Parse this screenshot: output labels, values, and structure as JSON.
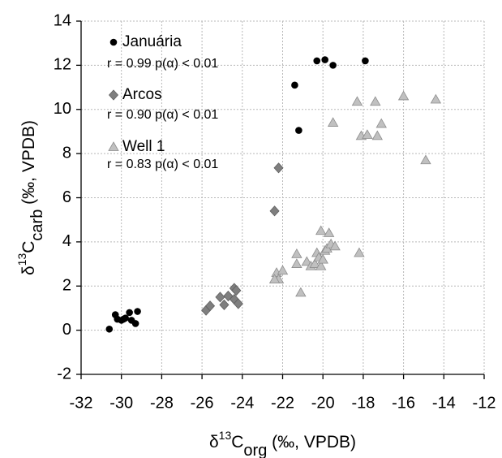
{
  "chart_data": {
    "type": "scatter",
    "xlabel": [
      "δ",
      "13",
      "C",
      "org",
      " (‰, VPDB)"
    ],
    "ylabel": [
      "δ",
      "13",
      "C",
      "carb",
      " (‰, VPDB)"
    ],
    "xlim": [
      -32,
      -12
    ],
    "xticks": [
      -32,
      -30,
      -28,
      -26,
      -24,
      -22,
      -20,
      -18,
      -16,
      -14,
      -12
    ],
    "ylim": [
      -2,
      14
    ],
    "yticks": [
      -2,
      0,
      2,
      4,
      6,
      8,
      10,
      12,
      14
    ],
    "grid": true,
    "series": [
      {
        "name": "Januária",
        "marker": "circle",
        "color": "#000000",
        "annotation": "r = 0.99 p(α) < 0.01",
        "x": [
          -30.6,
          -30.3,
          -30.2,
          -30.0,
          -29.8,
          -29.6,
          -29.5,
          -29.3,
          -29.2,
          -29.9,
          -21.4,
          -20.3,
          -19.9,
          -19.5,
          -17.9,
          -21.2
        ],
        "y": [
          0.05,
          0.7,
          0.5,
          0.45,
          0.55,
          0.8,
          0.45,
          0.3,
          0.85,
          0.5,
          11.1,
          12.2,
          12.25,
          12.0,
          12.2,
          9.05
        ]
      },
      {
        "name": "Arcos",
        "marker": "diamond",
        "color": "#7f7f7f",
        "annotation": "r = 0.90 p(α) < 0.01",
        "x": [
          -25.8,
          -25.6,
          -25.1,
          -24.9,
          -24.7,
          -24.4,
          -24.3,
          -24.4,
          -24.2,
          -22.4,
          -22.2
        ],
        "y": [
          0.9,
          1.1,
          1.5,
          1.15,
          1.55,
          1.9,
          1.8,
          1.4,
          1.2,
          5.4,
          7.35
        ]
      },
      {
        "name": "Well 1",
        "marker": "triangle",
        "color": "#c0c0c0",
        "annotation": "r = 0.83 p(α) < 0.01",
        "x": [
          -22.3,
          -22.2,
          -22.0,
          -22.4,
          -21.3,
          -21.3,
          -21.1,
          -20.8,
          -20.6,
          -20.4,
          -20.3,
          -20.2,
          -20.1,
          -20.1,
          -19.9,
          -19.8,
          -19.7,
          -19.6,
          -19.4,
          -20.0,
          -18.2,
          -19.5,
          -18.3,
          -18.1,
          -17.8,
          -17.4,
          -17.3,
          -17.1,
          -16.0,
          -14.9,
          -14.4
        ],
        "y": [
          2.6,
          2.3,
          2.7,
          2.3,
          3.45,
          3.0,
          1.7,
          3.1,
          2.9,
          3.0,
          3.5,
          3.3,
          2.9,
          4.5,
          3.6,
          3.7,
          4.4,
          3.9,
          3.8,
          3.2,
          3.5,
          9.4,
          10.35,
          8.8,
          8.85,
          10.35,
          8.8,
          9.35,
          10.6,
          7.7,
          10.45
        ]
      }
    ]
  }
}
